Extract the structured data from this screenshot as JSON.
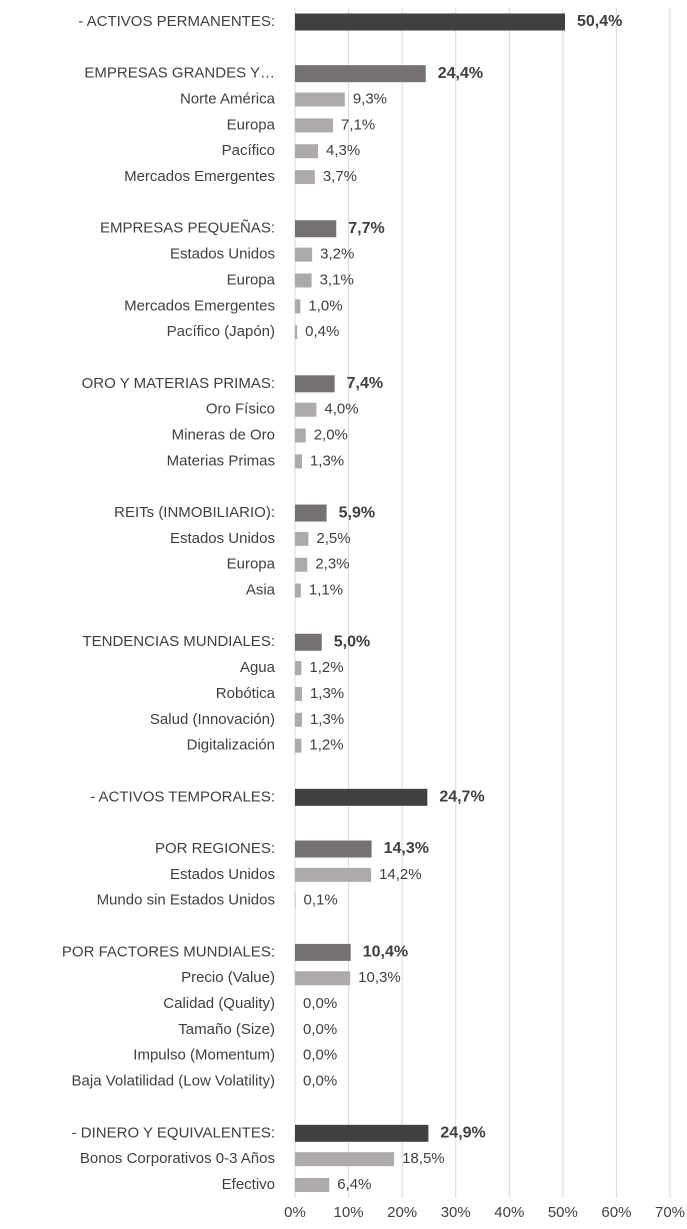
{
  "chart_data": {
    "type": "bar",
    "orientation": "horizontal",
    "categories": [
      "- ACTIVOS PERMANENTES:",
      null,
      "EMPRESAS GRANDES Y…",
      "Norte América",
      "Europa",
      "Pacífico",
      "Mercados Emergentes",
      null,
      "EMPRESAS PEQUEÑAS:",
      "Estados Unidos",
      "Europa",
      "Mercados Emergentes",
      "Pacífico (Japón)",
      null,
      "ORO Y MATERIAS PRIMAS:",
      "Oro Físico",
      "Mineras de Oro",
      "Materias Primas",
      null,
      "REITs (INMOBILIARIO):",
      "Estados Unidos",
      "Europa",
      "Asia",
      null,
      "TENDENCIAS MUNDIALES:",
      "Agua",
      "Robótica",
      "Salud (Innovación)",
      "Digitalización",
      null,
      "- ACTIVOS TEMPORALES:",
      null,
      "POR REGIONES:",
      "Estados Unidos",
      "Mundo sin Estados Unidos",
      null,
      "POR FACTORES MUNDIALES:",
      "Precio (Value)",
      "Calidad (Quality)",
      "Tamaño (Size)",
      "Impulso (Momentum)",
      "Baja Volatilidad (Low Volatility)",
      null,
      "- DINERO Y EQUIVALENTES:",
      "Bonos Corporativos 0-3 Años",
      "Efectivo"
    ],
    "values": [
      50.4,
      null,
      24.4,
      9.3,
      7.1,
      4.3,
      3.7,
      null,
      7.7,
      3.2,
      3.1,
      1.0,
      0.4,
      null,
      7.4,
      4.0,
      2.0,
      1.3,
      null,
      5.9,
      2.5,
      2.3,
      1.1,
      null,
      5.0,
      1.2,
      1.3,
      1.3,
      1.2,
      null,
      24.7,
      null,
      14.3,
      14.2,
      0.1,
      null,
      10.4,
      10.3,
      0.0,
      0.0,
      0.0,
      0.0,
      null,
      24.9,
      18.5,
      6.4
    ],
    "value_labels": [
      "50,4%",
      null,
      "24,4%",
      "9,3%",
      "7,1%",
      "4,3%",
      "3,7%",
      null,
      "7,7%",
      "3,2%",
      "3,1%",
      "1,0%",
      "0,4%",
      null,
      "7,4%",
      "4,0%",
      "2,0%",
      "1,3%",
      null,
      "5,9%",
      "2,5%",
      "2,3%",
      "1,1%",
      null,
      "5,0%",
      "1,2%",
      "1,3%",
      "1,3%",
      "1,2%",
      null,
      "24,7%",
      null,
      "14,3%",
      "14,2%",
      "0,1%",
      null,
      "10,4%",
      "10,3%",
      "0,0%",
      "0,0%",
      "0,0%",
      "0,0%",
      null,
      "24,9%",
      "18,5%",
      "6,4%"
    ],
    "color": "#aeaaaa",
    "colors": [
      "#404040",
      null,
      "#767171",
      "#aeaaaa",
      "#aeaaaa",
      "#aeaaaa",
      "#aeaaaa",
      null,
      "#767171",
      "#aeaaaa",
      "#aeaaaa",
      "#aeaaaa",
      "#aeaaaa",
      null,
      "#767171",
      "#aeaaaa",
      "#aeaaaa",
      "#aeaaaa",
      null,
      "#767171",
      "#aeaaaa",
      "#aeaaaa",
      "#aeaaaa",
      null,
      "#767171",
      "#aeaaaa",
      "#aeaaaa",
      "#aeaaaa",
      "#aeaaaa",
      null,
      "#404040",
      null,
      "#767171",
      "#aeaaaa",
      "#aeaaaa",
      null,
      "#767171",
      "#aeaaaa",
      "#aeaaaa",
      "#aeaaaa",
      "#aeaaaa",
      "#aeaaaa",
      null,
      "#404040",
      "#aeaaaa",
      "#aeaaaa"
    ],
    "xlim": [
      0,
      70
    ],
    "xticks": [
      {
        "value": 0,
        "label": "0%"
      },
      {
        "value": 10,
        "label": "10%"
      },
      {
        "value": 20,
        "label": "20%"
      },
      {
        "value": 30,
        "label": "30%"
      },
      {
        "value": 40,
        "label": "40%"
      },
      {
        "value": 50,
        "label": "50%"
      },
      {
        "value": 60,
        "label": "60%"
      },
      {
        "value": 70,
        "label": "70%"
      }
    ],
    "grid": true
  }
}
